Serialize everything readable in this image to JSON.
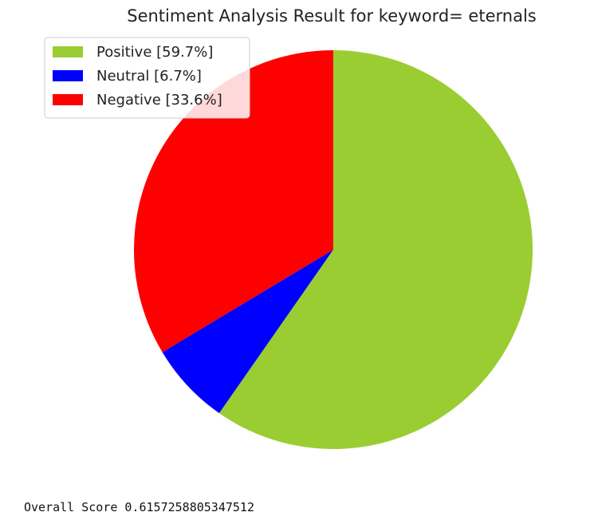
{
  "chart_data": {
    "type": "pie",
    "title": "Sentiment Analysis Result for keyword=  eternals",
    "slices": [
      {
        "label": "Positive [59.7%]",
        "value": 59.7,
        "color": "#9acd32"
      },
      {
        "label": "Neutral [6.7%]",
        "value": 6.7,
        "color": "#0000ff"
      },
      {
        "label": "Negative [33.6%]",
        "value": 33.6,
        "color": "#ff0000"
      }
    ],
    "start_angle_deg": 90,
    "direction": "clockwise",
    "legend_position": "top-left"
  },
  "output": {
    "score_line": "Overall Score 0.6157258805347512"
  }
}
